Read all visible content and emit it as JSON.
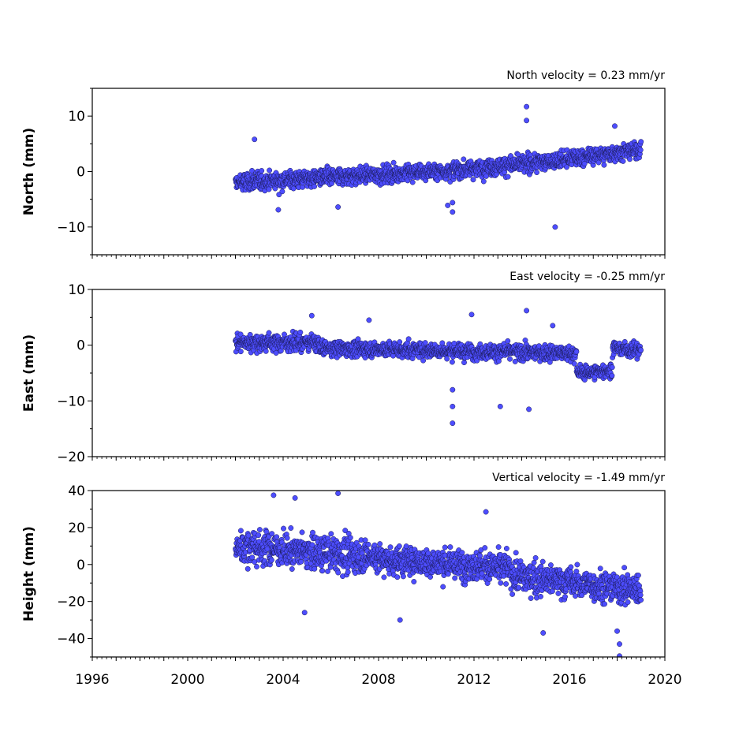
{
  "chart_data": [
    {
      "type": "scatter",
      "title": "North velocity = 0.23 mm/yr",
      "ylabel": "North (mm)",
      "ylim": [
        -15,
        15
      ],
      "yticks": [
        -10,
        0,
        10
      ],
      "ytick_labels": [
        "−10",
        "0",
        "10"
      ],
      "xlim": [
        1996,
        2020
      ],
      "show_xtick_labels": false,
      "color": "#4d4dff",
      "edge_color": "#1a1a55",
      "series": [
        {
          "segments": [
            {
              "x": [
                2002.0,
                2006.0
              ],
              "y": [
                -2.0,
                -1.0
              ],
              "noise": 1.6
            },
            {
              "x": [
                2006.0,
                2011.0
              ],
              "y": [
                -1.0,
                0.2
              ],
              "noise": 1.4
            },
            {
              "x": [
                2011.0,
                2015.5
              ],
              "y": [
                0.2,
                2.0
              ],
              "noise": 1.5
            },
            {
              "x": [
                2015.5,
                2019.0
              ],
              "y": [
                2.0,
                4.0
              ],
              "noise": 1.4
            }
          ],
          "outliers": [
            [
              2014.2,
              11.7
            ],
            [
              2014.2,
              9.2
            ],
            [
              2015.4,
              -10.0
            ],
            [
              2011.1,
              -7.3
            ],
            [
              2011.1,
              -5.6
            ],
            [
              2003.8,
              -6.9
            ],
            [
              2010.9,
              -6.1
            ],
            [
              2002.8,
              5.8
            ],
            [
              2017.9,
              8.2
            ],
            [
              2006.3,
              -6.4
            ]
          ]
        }
      ]
    },
    {
      "type": "scatter",
      "title": "East velocity = -0.25 mm/yr",
      "ylabel": "East (mm)",
      "ylim": [
        -20,
        10
      ],
      "yticks": [
        -20,
        -10,
        0,
        10
      ],
      "ytick_labels": [
        "−20",
        "−10",
        "0",
        "10"
      ],
      "xlim": [
        1996,
        2020
      ],
      "show_xtick_labels": false,
      "color": "#4d4dff",
      "edge_color": "#1a1a55",
      "series": [
        {
          "segments": [
            {
              "x": [
                2002.0,
                2005.5
              ],
              "y": [
                0.5,
                0.5
              ],
              "noise": 1.4
            },
            {
              "x": [
                2005.5,
                2016.3
              ],
              "y": [
                -0.5,
                -1.5
              ],
              "noise": 1.3
            },
            {
              "x": [
                2016.3,
                2017.8
              ],
              "y": [
                -5.0,
                -4.5
              ],
              "noise": 1.2
            },
            {
              "x": [
                2017.8,
                2019.0
              ],
              "y": [
                -0.5,
                -1.0
              ],
              "noise": 1.2
            }
          ],
          "outliers": [
            [
              2011.1,
              -14.0
            ],
            [
              2011.1,
              -11.0
            ],
            [
              2011.1,
              -8.0
            ],
            [
              2013.1,
              -11.0
            ],
            [
              2014.3,
              -11.5
            ],
            [
              2014.2,
              6.2
            ],
            [
              2011.9,
              5.5
            ],
            [
              2005.2,
              5.3
            ],
            [
              2007.6,
              4.5
            ],
            [
              2015.3,
              3.5
            ]
          ]
        }
      ]
    },
    {
      "type": "scatter",
      "title": "Vertical velocity = -1.49 mm/yr",
      "ylabel": "Height (mm)",
      "ylim": [
        -50,
        40
      ],
      "yticks": [
        -40,
        -20,
        0,
        20,
        40
      ],
      "ytick_labels": [
        "−40",
        "−20",
        "0",
        "20",
        "40"
      ],
      "xlim": [
        1996,
        2020
      ],
      "xticks": [
        1996,
        2000,
        2004,
        2008,
        2012,
        2016,
        2020
      ],
      "xtick_labels": [
        "1996",
        "2000",
        "2004",
        "2008",
        "2012",
        "2016",
        "2020"
      ],
      "show_xtick_labels": true,
      "color": "#4d4dff",
      "edge_color": "#1a1a55",
      "series": [
        {
          "segments": [
            {
              "x": [
                2002.0,
                2008.0
              ],
              "y": [
                10.0,
                4.0
              ],
              "noise": 8.5
            },
            {
              "x": [
                2008.0,
                2013.5
              ],
              "y": [
                3.0,
                -2.0
              ],
              "noise": 7.5
            },
            {
              "x": [
                2013.5,
                2019.0
              ],
              "y": [
                -6.0,
                -14.0
              ],
              "noise": 8.0
            }
          ],
          "outliers": [
            [
              2006.3,
              38.5
            ],
            [
              2003.6,
              37.5
            ],
            [
              2004.5,
              36.0
            ],
            [
              2012.5,
              28.5
            ],
            [
              2018.1,
              -49.5
            ],
            [
              2018.1,
              -43.0
            ],
            [
              2014.9,
              -37.0
            ],
            [
              2008.9,
              -30.0
            ],
            [
              2004.9,
              -26.0
            ],
            [
              2018.0,
              -36.0
            ]
          ]
        }
      ]
    }
  ]
}
